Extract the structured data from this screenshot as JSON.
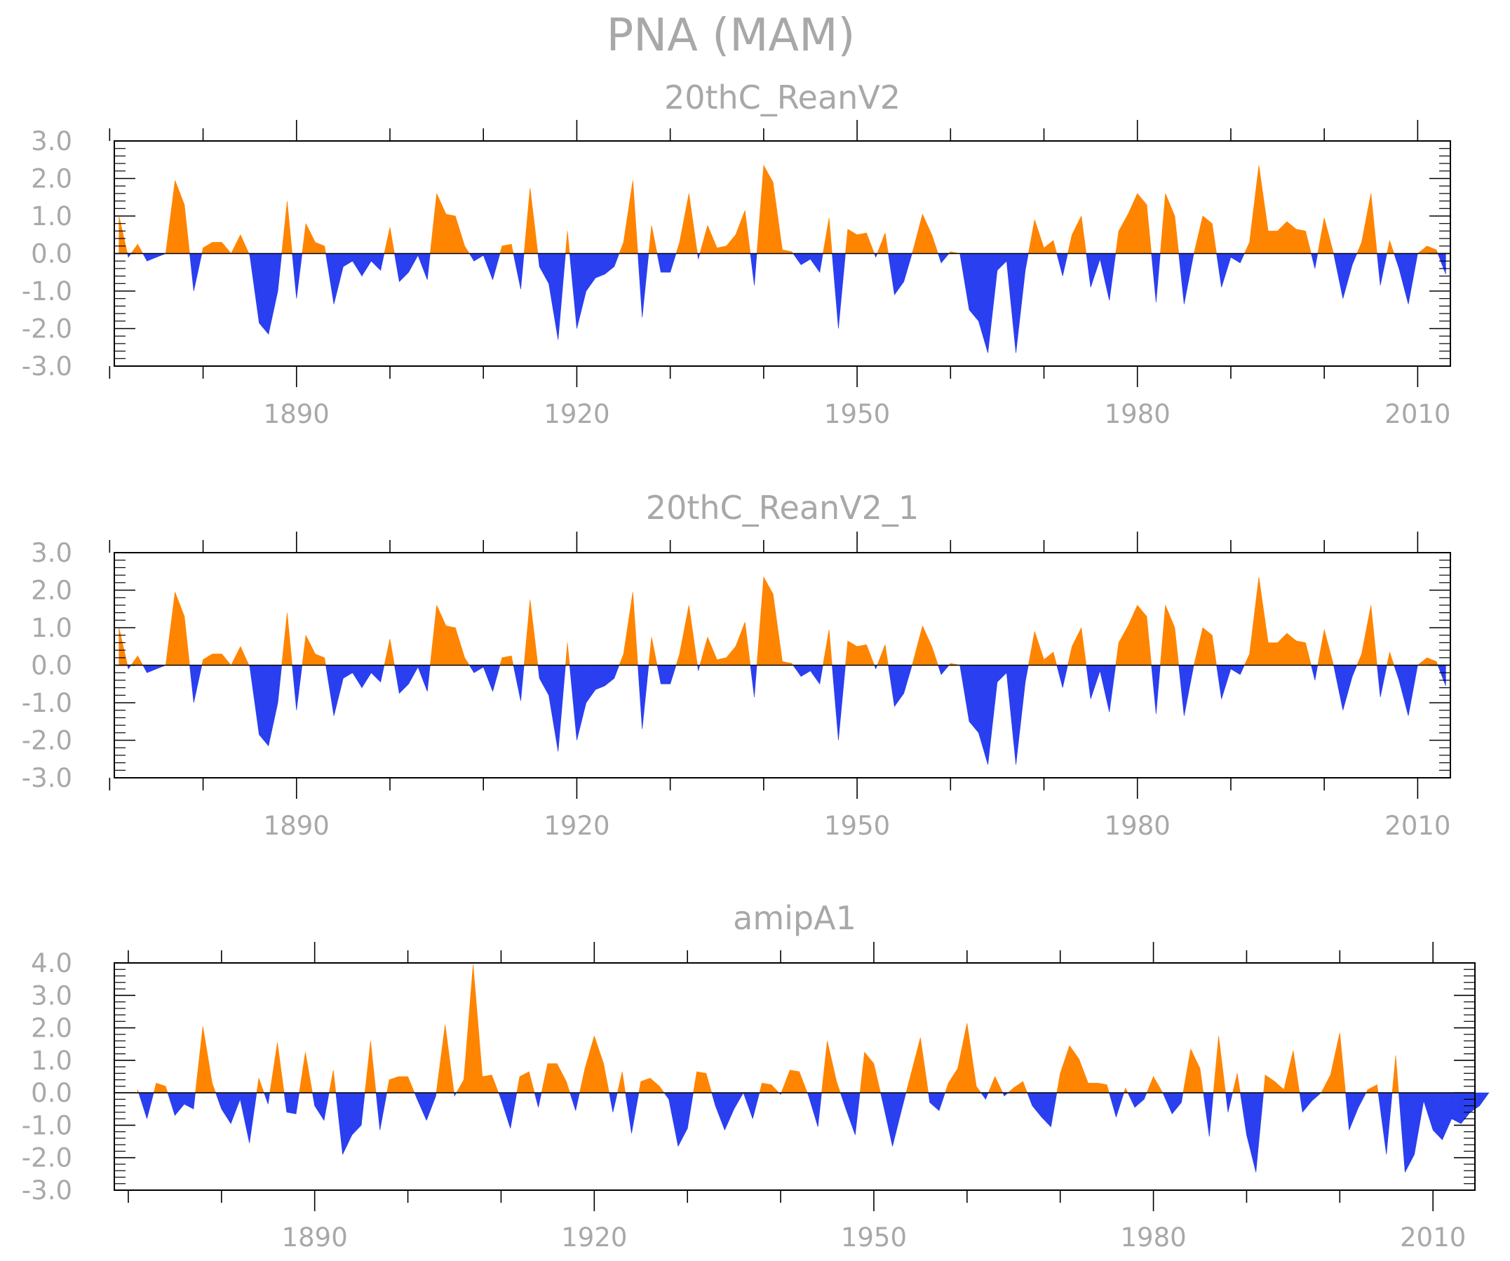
{
  "main_title": "PNA (MAM)",
  "colors": {
    "positive": "#ff8400",
    "negative": "#2a3ff0",
    "axis": "#000000",
    "text": "#a8a8a8"
  },
  "chart_data": [
    {
      "type": "area",
      "title": "20thC_ReanV2",
      "xlabel": "",
      "ylabel": "",
      "ylim": [
        -3,
        3
      ],
      "yticks": [
        "3.0",
        "2.0",
        "1.0",
        "0.0",
        "-1.0",
        "-2.0",
        "-3.0"
      ],
      "xticks": [
        "1890",
        "1920",
        "1950",
        "1980",
        "2010"
      ],
      "grid": false,
      "x_start": 1871,
      "values": [
        1.0,
        -0.1,
        0.25,
        -0.2,
        -0.1,
        0.0,
        1.95,
        1.3,
        -1.0,
        0.15,
        0.3,
        0.3,
        0.0,
        0.5,
        -0.05,
        -1.85,
        -2.15,
        -1.0,
        1.4,
        -1.2,
        0.8,
        0.3,
        0.2,
        -1.35,
        -0.35,
        -0.2,
        -0.6,
        -0.2,
        -0.45,
        0.7,
        -0.75,
        -0.5,
        -0.05,
        -0.7,
        1.6,
        1.05,
        1.0,
        0.2,
        -0.2,
        -0.05,
        -0.7,
        0.2,
        0.25,
        -0.95,
        1.75,
        -0.35,
        -0.8,
        -2.3,
        0.6,
        -2.0,
        -1.0,
        -0.65,
        -0.55,
        -0.35,
        0.3,
        1.95,
        -1.7,
        0.75,
        -0.5,
        -0.5,
        0.3,
        1.6,
        -0.15,
        0.75,
        0.15,
        0.2,
        0.5,
        1.15,
        -0.85,
        2.35,
        1.9,
        0.1,
        0.05,
        -0.3,
        -0.15,
        -0.5,
        0.95,
        -2.0,
        0.65,
        0.5,
        0.55,
        -0.1,
        0.55,
        -1.1,
        -0.75,
        0.1,
        1.05,
        0.5,
        -0.25,
        0.05,
        0.0,
        -1.5,
        -1.8,
        -2.65,
        -0.45,
        -0.2,
        -2.65,
        -0.45,
        0.9,
        0.15,
        0.35,
        -0.6,
        0.5,
        1.0,
        -0.9,
        -0.15,
        -1.25,
        0.6,
        1.05,
        1.6,
        1.3,
        -1.3,
        1.6,
        1.0,
        -1.35,
        -0.05,
        1.0,
        0.8,
        -0.9,
        -0.1,
        -0.25,
        0.3,
        2.35,
        0.6,
        0.6,
        0.85,
        0.65,
        0.6,
        -0.4,
        0.95,
        0.0,
        -1.2,
        -0.3,
        0.3,
        1.6,
        -0.85,
        0.35,
        -0.4,
        -1.35,
        0.0,
        0.2,
        0.1,
        -0.55
      ]
    },
    {
      "type": "area",
      "title": "20thC_ReanV2_1",
      "xlabel": "",
      "ylabel": "",
      "ylim": [
        -3,
        3
      ],
      "yticks": [
        "3.0",
        "2.0",
        "1.0",
        "0.0",
        "-1.0",
        "-2.0",
        "-3.0"
      ],
      "xticks": [
        "1890",
        "1920",
        "1950",
        "1980",
        "2010"
      ],
      "grid": false,
      "x_start": 1871,
      "values": [
        1.0,
        -0.1,
        0.25,
        -0.2,
        -0.1,
        0.0,
        1.95,
        1.3,
        -1.0,
        0.15,
        0.3,
        0.3,
        0.0,
        0.5,
        -0.05,
        -1.85,
        -2.15,
        -1.0,
        1.4,
        -1.2,
        0.8,
        0.3,
        0.2,
        -1.35,
        -0.35,
        -0.2,
        -0.6,
        -0.2,
        -0.45,
        0.7,
        -0.75,
        -0.5,
        -0.05,
        -0.7,
        1.6,
        1.05,
        1.0,
        0.2,
        -0.2,
        -0.05,
        -0.7,
        0.2,
        0.25,
        -0.95,
        1.75,
        -0.35,
        -0.8,
        -2.3,
        0.6,
        -2.0,
        -1.0,
        -0.65,
        -0.55,
        -0.35,
        0.3,
        1.95,
        -1.7,
        0.75,
        -0.5,
        -0.5,
        0.3,
        1.6,
        -0.15,
        0.75,
        0.15,
        0.2,
        0.5,
        1.15,
        -0.85,
        2.35,
        1.9,
        0.1,
        0.05,
        -0.3,
        -0.15,
        -0.5,
        0.95,
        -2.0,
        0.65,
        0.5,
        0.55,
        -0.1,
        0.55,
        -1.1,
        -0.75,
        0.1,
        1.05,
        0.5,
        -0.25,
        0.05,
        0.0,
        -1.5,
        -1.8,
        -2.65,
        -0.45,
        -0.2,
        -2.65,
        -0.45,
        0.9,
        0.15,
        0.35,
        -0.6,
        0.5,
        1.0,
        -0.9,
        -0.15,
        -1.25,
        0.6,
        1.05,
        1.6,
        1.3,
        -1.3,
        1.6,
        1.0,
        -1.35,
        -0.05,
        1.0,
        0.8,
        -0.9,
        -0.1,
        -0.25,
        0.3,
        2.35,
        0.6,
        0.6,
        0.85,
        0.65,
        0.6,
        -0.4,
        0.95,
        0.0,
        -1.2,
        -0.3,
        0.3,
        1.6,
        -0.85,
        0.35,
        -0.4,
        -1.35,
        0.0,
        0.2,
        0.1,
        -0.55
      ]
    },
    {
      "type": "area",
      "title": "amipA1",
      "xlabel": "",
      "ylabel": "",
      "ylim": [
        -3,
        4
      ],
      "yticks": [
        "4.0",
        "3.0",
        "2.0",
        "1.0",
        "0.0",
        "-1.0",
        "-2.0",
        "-3.0"
      ],
      "xticks": [
        "1890",
        "1920",
        "1950",
        "1980",
        "2010"
      ],
      "grid": false,
      "x_start": 1871,
      "values": [
        0.1,
        -0.8,
        0.3,
        0.2,
        -0.7,
        -0.35,
        -0.5,
        2.05,
        0.3,
        -0.5,
        -0.95,
        -0.2,
        -1.55,
        0.45,
        -0.35,
        1.55,
        -0.6,
        -0.65,
        1.25,
        -0.4,
        -0.85,
        0.7,
        -1.9,
        -1.3,
        -1.0,
        1.6,
        -1.15,
        0.4,
        0.5,
        0.5,
        -0.2,
        -0.85,
        -0.1,
        2.1,
        -0.1,
        0.4,
        3.95,
        0.5,
        0.55,
        -0.2,
        -1.1,
        0.5,
        0.65,
        -0.45,
        0.9,
        0.9,
        0.35,
        -0.55,
        0.75,
        1.75,
        0.9,
        -0.6,
        0.65,
        -1.25,
        0.35,
        0.45,
        0.2,
        -0.2,
        -1.65,
        -1.1,
        0.65,
        0.6,
        -0.4,
        -1.15,
        -0.5,
        0.0,
        -0.8,
        0.3,
        0.25,
        -0.05,
        0.7,
        0.65,
        -0.1,
        -1.05,
        1.6,
        0.35,
        -0.5,
        -1.3,
        1.25,
        0.9,
        -0.35,
        -1.65,
        -0.5,
        0.6,
        1.7,
        -0.3,
        -0.55,
        0.3,
        0.75,
        2.15,
        0.2,
        -0.2,
        0.5,
        -0.1,
        0.15,
        0.35,
        -0.4,
        -0.75,
        -1.05,
        0.6,
        1.45,
        1.05,
        0.3,
        0.3,
        0.25,
        -0.75,
        0.15,
        -0.45,
        -0.2,
        0.5,
        0.0,
        -0.65,
        -0.3,
        1.35,
        0.75,
        -1.35,
        1.75,
        -0.6,
        0.6,
        -1.3,
        -2.45,
        0.55,
        0.35,
        0.1,
        1.3,
        -0.6,
        -0.25,
        0.0,
        0.55,
        1.85,
        -1.15,
        -0.45,
        0.1,
        0.25,
        -1.9,
        1.15,
        -2.45,
        -1.9,
        -0.25,
        -1.15,
        -1.45,
        -0.8,
        -0.95,
        -0.6,
        -0.4,
        0.0
      ]
    }
  ]
}
